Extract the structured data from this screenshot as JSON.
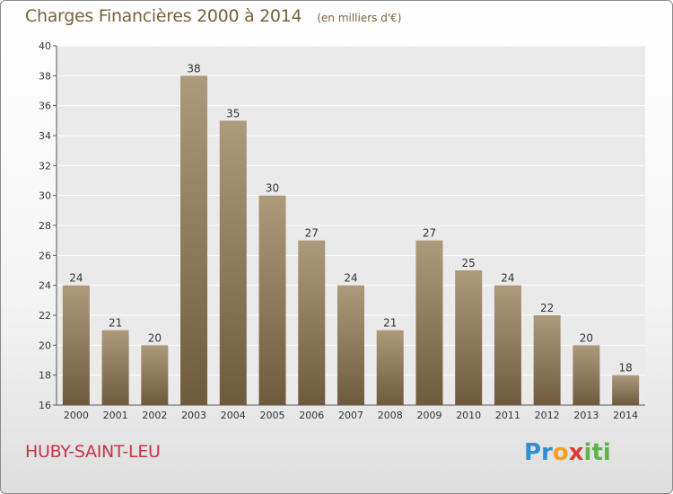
{
  "header": {
    "title": "Charges Financières 2000 à 2014",
    "subtitle": "(en milliers d'€)"
  },
  "footer": {
    "city": "HUBY-SAINT-LEU",
    "logo": "Proxiti"
  },
  "colors": {
    "title": "#7a5f3c",
    "bar_light": "#ad9a7b",
    "bar_dark": "#6f5a3e",
    "city": "#c8324a"
  },
  "chart_data": {
    "type": "bar",
    "title": "Charges Financières 2000 à 2014",
    "subtitle": "(en milliers d'€)",
    "xlabel": "",
    "ylabel": "",
    "categories": [
      "2000",
      "2001",
      "2002",
      "2003",
      "2004",
      "2005",
      "2006",
      "2007",
      "2008",
      "2009",
      "2010",
      "2011",
      "2012",
      "2013",
      "2014"
    ],
    "values": [
      24,
      21,
      20,
      38,
      35,
      30,
      27,
      24,
      21,
      27,
      25,
      24,
      22,
      20,
      18
    ],
    "ylim": [
      16,
      40
    ],
    "yticks": [
      16,
      18,
      20,
      22,
      24,
      26,
      28,
      30,
      32,
      34,
      36,
      38,
      40
    ],
    "grid": true,
    "legend": "none"
  }
}
